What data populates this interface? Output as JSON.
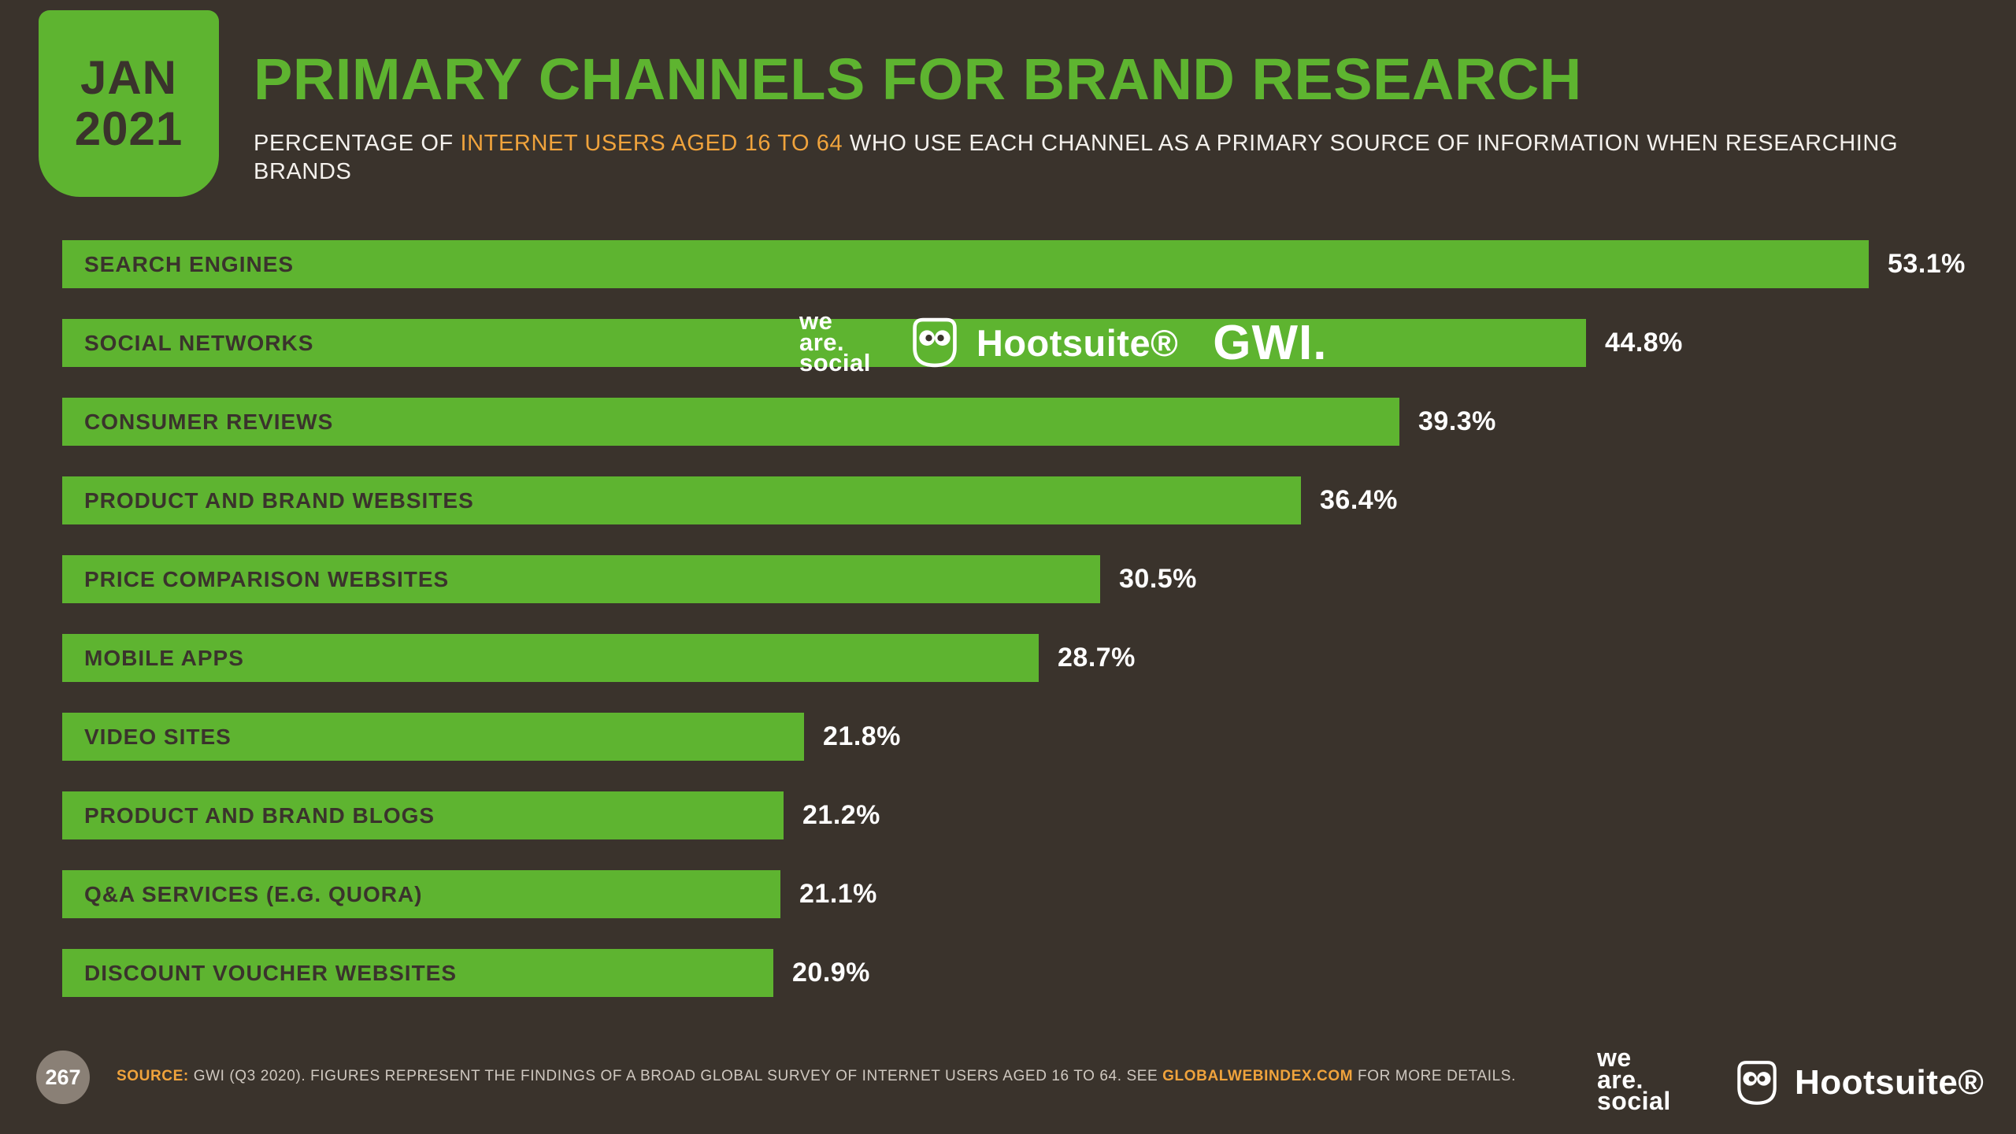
{
  "badge": {
    "month": "JAN",
    "year": "2021"
  },
  "header": {
    "title": "PRIMARY CHANNELS FOR BRAND RESEARCH",
    "subtitle_prefix": "PERCENTAGE OF ",
    "subtitle_highlight": "INTERNET USERS AGED 16 TO 64",
    "subtitle_suffix": " WHO USE EACH CHANNEL AS A PRIMARY SOURCE OF INFORMATION WHEN RESEARCHING BRANDS"
  },
  "chart_data": {
    "type": "bar",
    "orientation": "horizontal",
    "title": "PRIMARY CHANNELS FOR BRAND RESEARCH",
    "categories": [
      "SEARCH ENGINES",
      "SOCIAL NETWORKS",
      "CONSUMER REVIEWS",
      "PRODUCT AND BRAND WEBSITES",
      "PRICE COMPARISON WEBSITES",
      "MOBILE APPS",
      "VIDEO SITES",
      "PRODUCT AND BRAND BLOGS",
      "Q&A SERVICES (E.G. QUORA)",
      "DISCOUNT VOUCHER WEBSITES"
    ],
    "values": [
      53.1,
      44.8,
      39.3,
      36.4,
      30.5,
      28.7,
      21.8,
      21.2,
      21.1,
      20.9
    ],
    "value_labels": [
      "53.1%",
      "44.8%",
      "39.3%",
      "36.4%",
      "30.5%",
      "28.7%",
      "21.8%",
      "21.2%",
      "21.1%",
      "20.9%"
    ],
    "unit": "%",
    "xlim": [
      0,
      55
    ],
    "grid": false,
    "legend": "none",
    "bar_color": "#5eb430",
    "bar_label_color": "#3a332c",
    "value_label_color": "#ffffff"
  },
  "watermark": {
    "we_are_social": {
      "line1": "we",
      "line2": "are.",
      "line3": "social"
    },
    "hootsuite": "Hootsuite®",
    "gwi": "GWI."
  },
  "footer": {
    "page_number": "267",
    "source_label": "SOURCE:",
    "source_body": " GWI (Q3 2020). FIGURES REPRESENT THE FINDINGS OF A BROAD GLOBAL SURVEY OF INTERNET USERS AGED 16 TO 64. SEE ",
    "source_link": "GLOBALWEBINDEX.COM",
    "source_tail": " FOR MORE DETAILS.",
    "we_are_social": {
      "line1": "we",
      "line2": "are.",
      "line3": "social"
    },
    "hootsuite": "Hootsuite®"
  },
  "colors": {
    "background": "#3a332c",
    "accent_green": "#5eb430",
    "accent_orange": "#f0a33c",
    "text_light": "#f4f1ed",
    "footer_text": "#cfc8c0",
    "page_badge": "#8a8076"
  }
}
